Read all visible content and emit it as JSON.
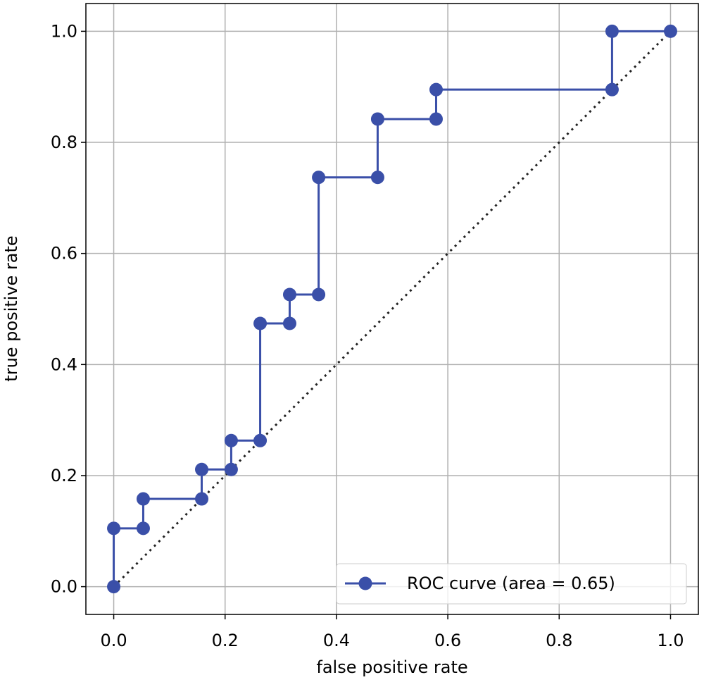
{
  "chart_data": {
    "type": "line",
    "xlabel": "false positive rate",
    "ylabel": "true positive rate",
    "x": [
      0,
      0,
      0.053,
      0.053,
      0.158,
      0.158,
      0.211,
      0.211,
      0.263,
      0.263,
      0.316,
      0.316,
      0.368,
      0.368,
      0.474,
      0.474,
      0.579,
      0.579,
      0.895,
      0.895,
      1
    ],
    "series": [
      {
        "name": "ROC curve (area = 0.65)",
        "color": "#3a4fa8",
        "values": [
          0,
          0.105,
          0.105,
          0.158,
          0.158,
          0.211,
          0.211,
          0.263,
          0.263,
          0.474,
          0.474,
          0.526,
          0.526,
          0.737,
          0.737,
          0.842,
          0.842,
          0.895,
          0.895,
          1,
          1
        ]
      }
    ],
    "diagonal": {
      "x": [
        0,
        1
      ],
      "values": [
        0,
        1
      ],
      "color": "#222222"
    },
    "xlim": [
      -0.05,
      1.05
    ],
    "ylim": [
      -0.05,
      1.05
    ],
    "xticks": [
      {
        "value": 0,
        "label": "0.0"
      },
      0.2,
      0.4,
      0.6,
      0.8,
      {
        "value": 1,
        "label": "1.0"
      }
    ],
    "yticks": [
      {
        "value": 0,
        "label": "0.0"
      },
      0.2,
      0.4,
      0.6,
      0.8,
      {
        "value": 1,
        "label": "1.0"
      }
    ],
    "grid": true,
    "legend": "lower right"
  }
}
